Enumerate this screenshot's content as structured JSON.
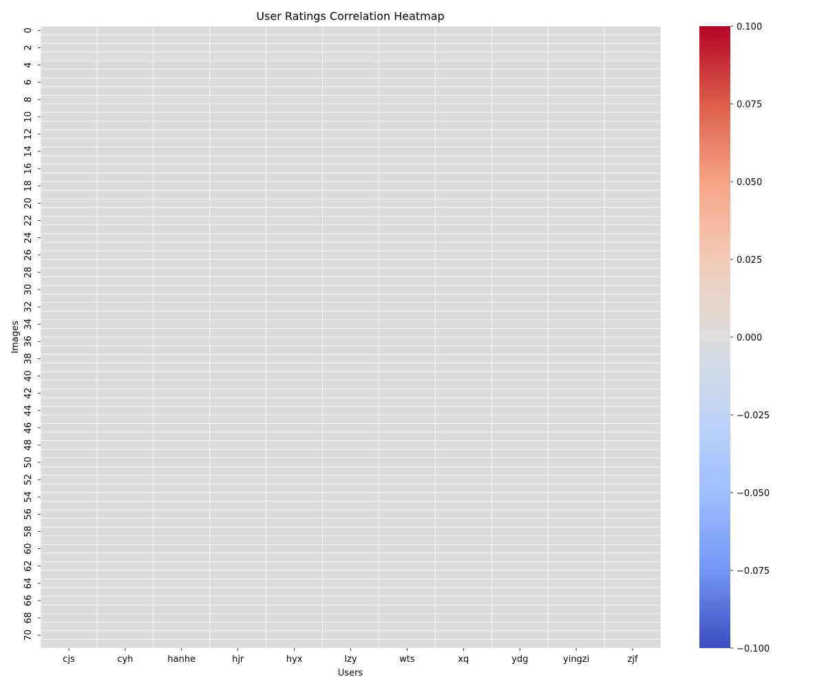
{
  "chart_data": {
    "type": "heatmap",
    "title": "User Ratings Correlation Heatmap",
    "xlabel": "Users",
    "ylabel": "Images",
    "columns": [
      "cjs",
      "cyh",
      "hanhe",
      "hjr",
      "hyx",
      "lzy",
      "wts",
      "xq",
      "ydg",
      "yingzi",
      "zjf"
    ],
    "row_count": 72,
    "row_tick_labels": [
      "0",
      "2",
      "4",
      "6",
      "8",
      "10",
      "12",
      "14",
      "16",
      "18",
      "20",
      "22",
      "24",
      "26",
      "28",
      "30",
      "32",
      "34",
      "36",
      "38",
      "40",
      "42",
      "44",
      "46",
      "48",
      "50",
      "52",
      "54",
      "56",
      "58",
      "60",
      "62",
      "64",
      "66",
      "68",
      "70"
    ],
    "row_tick_step": 2,
    "cell_value": 0.0,
    "colormap": "coolwarm",
    "colorbar": {
      "vmin": -0.1,
      "vmax": 0.1,
      "ticks": [
        "0.100",
        "0.075",
        "0.050",
        "0.025",
        "0.000",
        "−0.025",
        "−0.050",
        "−0.075",
        "−0.100"
      ],
      "tick_values": [
        0.1,
        0.075,
        0.05,
        0.025,
        0.0,
        -0.025,
        -0.05,
        -0.075,
        -0.1
      ],
      "stops": [
        "#b40426",
        "#dc5d4a",
        "#f6a385",
        "#f2cbb7",
        "#dddddd",
        "#c0d4f5",
        "#9ebeff",
        "#7396f5",
        "#3b4cc0"
      ]
    },
    "cell_color": "#dcdcdc",
    "gridline_color": "#ffffff",
    "grid": true
  }
}
